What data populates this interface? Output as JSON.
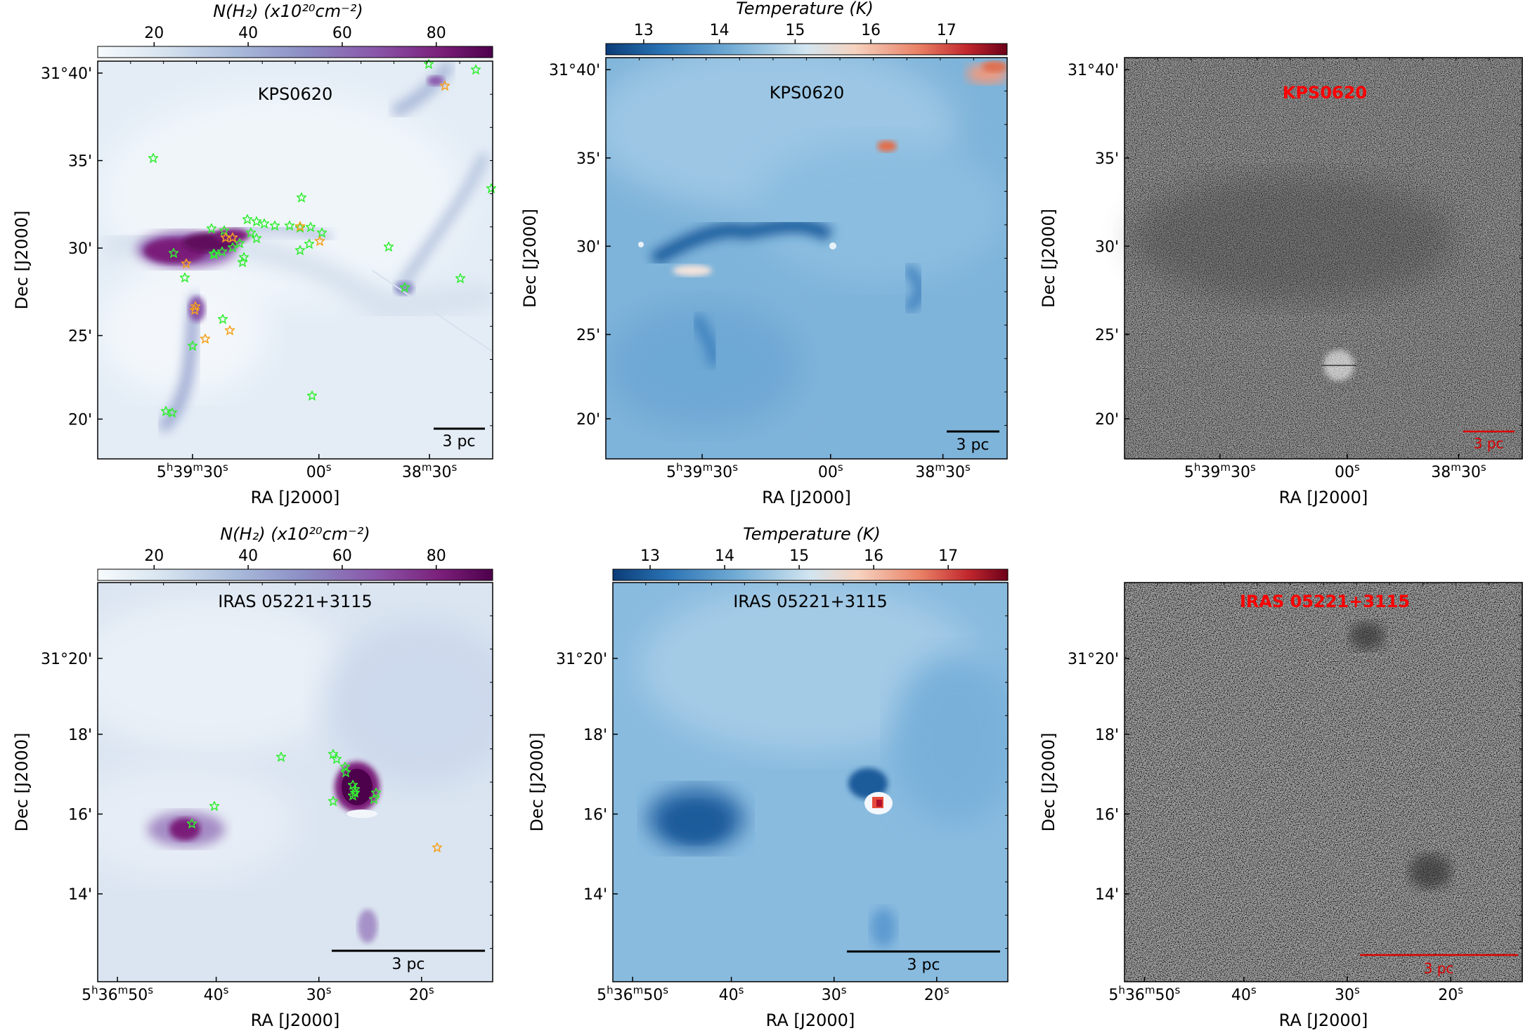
{
  "figure": {
    "title": "Column density, dust temperature and optical image panels for KPS0620 and IRAS 05221+3115"
  },
  "colors": {
    "density": [
      "#f7fbfd",
      "#d6e3ef",
      "#a9bbdb",
      "#8c8ec4",
      "#8a57aa",
      "#7a1f79",
      "#4d004b"
    ],
    "temperature": [
      "#0b3c78",
      "#2a73b4",
      "#75aed6",
      "#d2e5f0",
      "#f6d3c0",
      "#e98065",
      "#c1272d",
      "#6c0019"
    ],
    "star_green": "#33ee33",
    "star_orange": "#f4a21f",
    "label_red": "#ff0000",
    "scalebar_red": "#dd0000"
  },
  "cb_density": {
    "label": "N(H₂) (x10²⁰cm⁻²)",
    "ticks": [
      "20",
      "40",
      "60",
      "80"
    ]
  },
  "cb_temperature": {
    "label": "Temperature (K)",
    "ticks": [
      "13",
      "14",
      "15",
      "16",
      "17"
    ]
  },
  "rows": [
    {
      "field": "KPS0620",
      "dec_ticks": [
        "31°40'",
        "35'",
        "30'",
        "25'",
        "20'"
      ],
      "ra_ticks": [
        "5h39m30s",
        "00s",
        "38m30s"
      ],
      "xlabel": "RA [J2000]",
      "ylabel": "Dec [J2000]",
      "scalebar": "3 pc"
    },
    {
      "field": "IRAS 05221+3115",
      "dec_ticks": [
        "31°20'",
        "18'",
        "16'",
        "14'"
      ],
      "ra_ticks": [
        "5h36m50s",
        "40s",
        "30s",
        "20s"
      ],
      "xlabel": "RA [J2000]",
      "ylabel": "Dec [J2000]",
      "scalebar": "3 pc"
    }
  ],
  "chart_data": [
    {
      "type": "heatmap",
      "panel": "top-left",
      "title": "KPS0620",
      "quantity": "H2 column density",
      "colorbar": {
        "label": "N(H₂) (x10²⁰cm⁻²)",
        "ticks": [
          20,
          40,
          60,
          80
        ],
        "range": [
          8,
          92
        ]
      },
      "xlabel": "RA [J2000]",
      "ylabel": "Dec [J2000]",
      "xticks": [
        "5h39m30s",
        "00s",
        "38m30s"
      ],
      "yticks": [
        "31°40'",
        "35'",
        "30'",
        "25'",
        "20'"
      ],
      "scalebar": "3 pc",
      "markers": {
        "green_stars": 33,
        "orange_stars": 10
      }
    },
    {
      "type": "heatmap",
      "panel": "top-middle",
      "title": "KPS0620",
      "quantity": "Dust temperature",
      "colorbar": {
        "label": "Temperature (K)",
        "ticks": [
          13,
          14,
          15,
          16,
          17
        ],
        "range": [
          12.5,
          17.8
        ]
      },
      "xlabel": "RA [J2000]",
      "ylabel": "Dec [J2000]",
      "xticks": [
        "5h39m30s",
        "00s",
        "38m30s"
      ],
      "yticks": [
        "31°40'",
        "35'",
        "30'",
        "25'",
        "20'"
      ],
      "scalebar": "3 pc"
    },
    {
      "type": "heatmap",
      "panel": "top-right",
      "title": "KPS0620",
      "quantity": "Optical image (grayscale)",
      "xlabel": "RA [J2000]",
      "ylabel": "Dec [J2000]",
      "xticks": [
        "5h39m30s",
        "00s",
        "38m30s"
      ],
      "yticks": [
        "31°40'",
        "35'",
        "30'",
        "25'",
        "20'"
      ],
      "scalebar": "3 pc"
    },
    {
      "type": "heatmap",
      "panel": "bottom-left",
      "title": "IRAS 05221+3115",
      "quantity": "H2 column density",
      "colorbar": {
        "label": "N(H₂) (x10²⁰cm⁻²)",
        "ticks": [
          20,
          40,
          60,
          80
        ],
        "range": [
          8,
          92
        ]
      },
      "xlabel": "RA [J2000]",
      "ylabel": "Dec [J2000]",
      "xticks": [
        "5h36m50s",
        "40s",
        "30s",
        "20s"
      ],
      "yticks": [
        "31°20'",
        "18'",
        "16'",
        "14'"
      ],
      "scalebar": "3 pc",
      "markers": {
        "green_stars": 14,
        "orange_stars": 1
      }
    },
    {
      "type": "heatmap",
      "panel": "bottom-middle",
      "title": "IRAS 05221+3115",
      "quantity": "Dust temperature",
      "colorbar": {
        "label": "Temperature (K)",
        "ticks": [
          13,
          14,
          15,
          16,
          17
        ],
        "range": [
          12.5,
          17.8
        ]
      },
      "xlabel": "RA [J2000]",
      "ylabel": "Dec [J2000]",
      "xticks": [
        "5h36m50s",
        "40s",
        "30s",
        "20s"
      ],
      "yticks": [
        "31°20'",
        "18'",
        "16'",
        "14'"
      ],
      "scalebar": "3 pc"
    },
    {
      "type": "heatmap",
      "panel": "bottom-right",
      "title": "IRAS 05221+3115",
      "quantity": "Optical image (grayscale)",
      "xlabel": "RA [J2000]",
      "ylabel": "Dec [J2000]",
      "xticks": [
        "5h36m50s",
        "40s",
        "30s",
        "20s"
      ],
      "yticks": [
        "31°20'",
        "18'",
        "16'",
        "14'"
      ],
      "scalebar": "3 pc"
    }
  ]
}
